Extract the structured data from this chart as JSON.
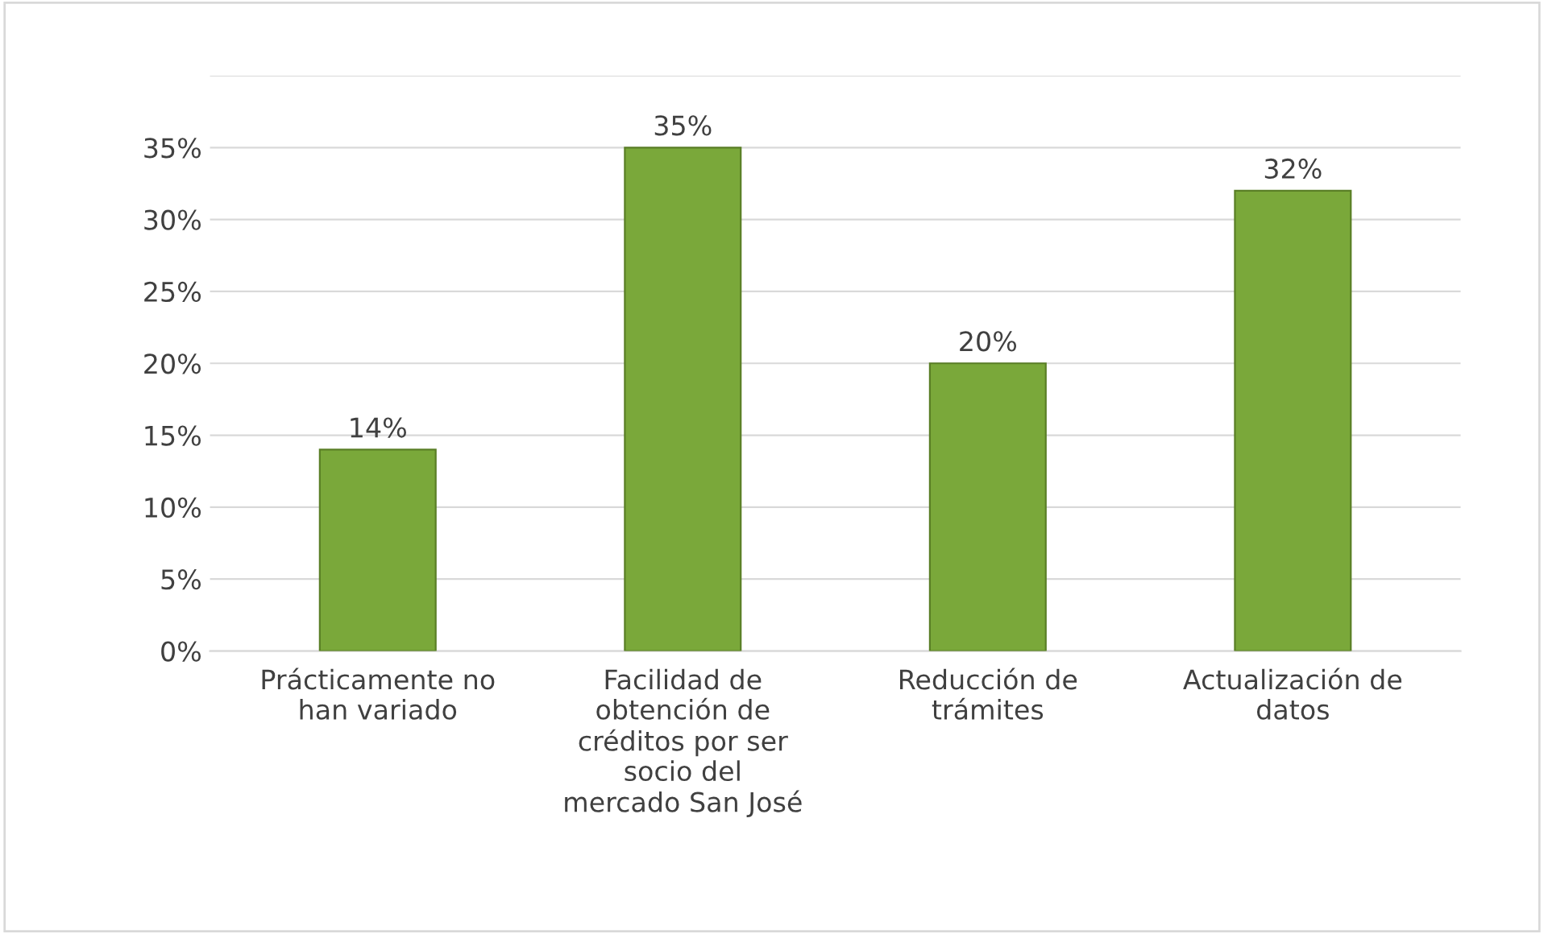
{
  "chart_data": {
    "type": "bar",
    "categories": [
      "Prácticamente no\nhan variado",
      "Facilidad de\nobtención de\ncréditos por ser\nsocio del\nmercado San José",
      "Reducción de\ntrámites",
      "Actualización de\ndatos"
    ],
    "values": [
      14,
      35,
      20,
      32
    ],
    "value_labels": [
      "14%",
      "35%",
      "20%",
      "32%"
    ],
    "color": "#7aa83a",
    "ylim": [
      0,
      40
    ],
    "yticks": [
      {
        "value": 0,
        "label": "0%"
      },
      {
        "value": 5,
        "label": "5%"
      },
      {
        "value": 10,
        "label": "10%"
      },
      {
        "value": 15,
        "label": "15%"
      },
      {
        "value": 20,
        "label": "20%"
      },
      {
        "value": 25,
        "label": "25%"
      },
      {
        "value": 30,
        "label": "30%"
      },
      {
        "value": 35,
        "label": "35%"
      },
      {
        "value": 40,
        "label": null
      }
    ],
    "grid": "y"
  }
}
